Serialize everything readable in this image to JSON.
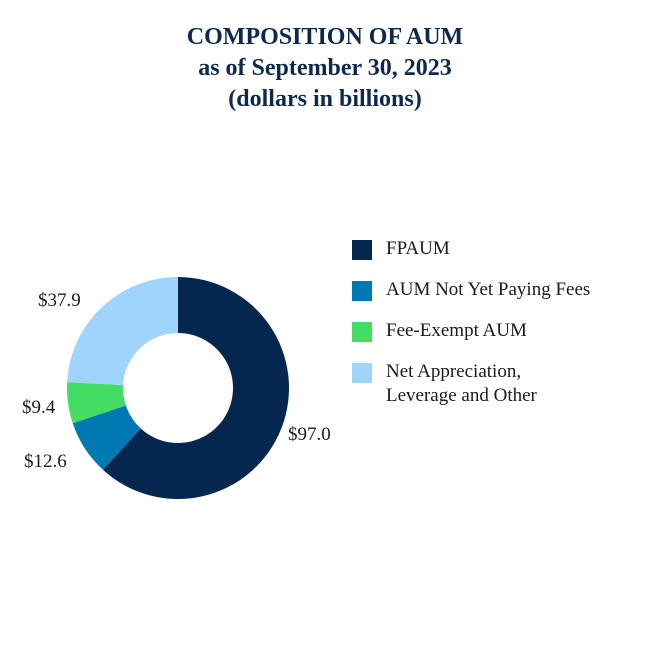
{
  "title": {
    "line1": "COMPOSITION OF AUM",
    "line2": "as of September 30, 2023",
    "line3": "(dollars in billions)"
  },
  "chart_data": {
    "type": "pie",
    "subtype": "donut",
    "title": "COMPOSITION OF AUM as of September 30, 2023 (dollars in billions)",
    "unit": "dollars in billions",
    "legend_position": "right",
    "slices": [
      {
        "name": "FPAUM",
        "value": 97.0,
        "label": "$97.0",
        "color": "#04264f"
      },
      {
        "name": "AUM Not Yet Paying Fees",
        "value": 12.6,
        "label": "$12.6",
        "color": "#0078b2"
      },
      {
        "name": "Fee-Exempt AUM",
        "value": 9.4,
        "label": "$9.4",
        "color": "#45dc63"
      },
      {
        "name": "Net Appreciation, Leverage and Other",
        "value": 37.9,
        "label": "$37.9",
        "color": "#9fd5fc"
      }
    ]
  },
  "legend": [
    {
      "lines": [
        "FPAUM"
      ],
      "color": "#04264f"
    },
    {
      "lines": [
        "AUM Not Yet Paying Fees"
      ],
      "color": "#0078b2"
    },
    {
      "lines": [
        "Fee-Exempt AUM"
      ],
      "color": "#45dc63"
    },
    {
      "lines": [
        "Net Appreciation,",
        "Leverage and Other"
      ],
      "color": "#9fd5fc"
    }
  ]
}
